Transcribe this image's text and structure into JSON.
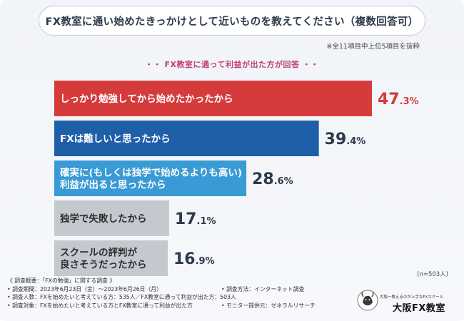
{
  "title": "FX教室に通い始めたきっかけとして近いものを教えてください（複数回答可）",
  "note": "※全11項目中上位5項目を抜粋",
  "subtitle": "・・ FX教室に通って利益が出た方が回答 ・・",
  "sample": "(n=503人)",
  "chart_data": {
    "type": "bar",
    "orientation": "horizontal",
    "unit": "%",
    "xlim": [
      0,
      47.3
    ],
    "bars": [
      {
        "label_lines": [
          "しっかり勉強してから始めたかったから"
        ],
        "value": 47.3,
        "value_int": "47",
        "value_dec": ".3",
        "pct": "%",
        "color": "#d63b3b"
      },
      {
        "label_lines": [
          "FXは難しいと思ったから"
        ],
        "value": 39.4,
        "value_int": "39",
        "value_dec": ".4",
        "pct": "%",
        "color": "#1e5fa8"
      },
      {
        "label_lines": [
          "確実に(もしくは独学で始めるよりも高い)",
          "利益が出ると思ったから"
        ],
        "value": 28.6,
        "value_int": "28",
        "value_dec": ".6",
        "pct": "%",
        "color": "#3a9ad6"
      },
      {
        "label_lines": [
          "独学で失敗したから"
        ],
        "value": 17.1,
        "value_int": "17",
        "value_dec": ".1",
        "pct": "%",
        "color": "#c4c8cf"
      },
      {
        "label_lines": [
          "スクールの評判が",
          "良さそうだったから"
        ],
        "value": 16.9,
        "value_int": "16",
        "value_dec": ".9",
        "pct": "%",
        "color": "#c4c8cf"
      }
    ]
  },
  "footer": {
    "rows": [
      {
        "left": "《 調査概要：「FXの勉強」に関する調査 》",
        "right": ""
      },
      {
        "left": "• 調査期間：2023年6月23日（金）〜2023年6月26日（月）",
        "right": "• 調査方法：インターネット調査"
      },
      {
        "left": "• 調査人数：FXを始めたいと考えている方：535人／FX教室に通って利益が出た方：503人",
        "right": ""
      },
      {
        "left": "• 調査対象：FXを始めたいと考えている方とFX教室に通って利益が出た方",
        "right": "• モニター提供元：ゼネラルリサーチ"
      }
    ]
  },
  "logo": {
    "tagline": "大阪一教えるのが上手なFXスクール",
    "name": "大阪FX教室",
    "icon": "bull-mascot-icon"
  }
}
